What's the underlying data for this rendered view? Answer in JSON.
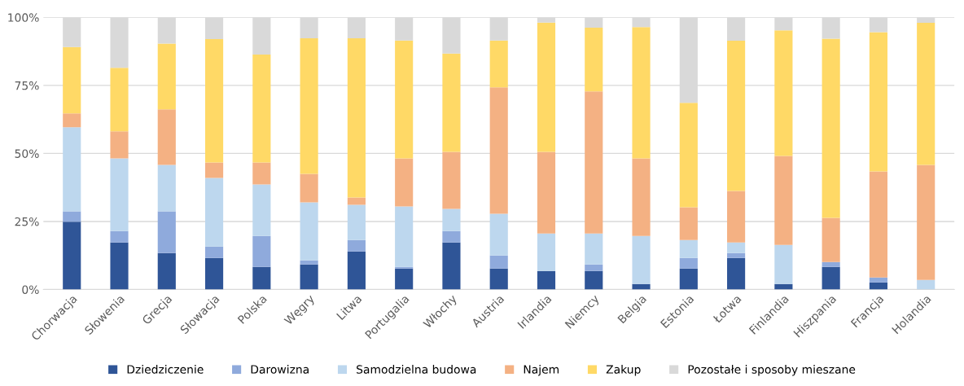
{
  "chart_data": {
    "type": "bar",
    "stacked": true,
    "grid": "y",
    "legend": "bottom",
    "categories": [
      "Chorwacja",
      "Słowenia",
      "Grecja",
      "Słowacja",
      "Polska",
      "Węgry",
      "Litwa",
      "Portugalia",
      "Włochy",
      "Austria",
      "Irlandia",
      "Niemcy",
      "Belgia",
      "Estonia",
      "Łotwa",
      "Finlandia",
      "Hiszpania",
      "Francja",
      "Holandia"
    ],
    "ylim": [
      0,
      100
    ],
    "yticks": [
      {
        "value": 0,
        "label": "0%"
      },
      {
        "value": 25,
        "label": "25%"
      },
      {
        "value": 50,
        "label": "50%"
      },
      {
        "value": 75,
        "label": "75%"
      },
      {
        "value": 100,
        "label": "100%"
      }
    ],
    "series": [
      {
        "name": "Dziedziczenie",
        "color": "#2f5597",
        "values": [
          24.9,
          17.3,
          13.4,
          11.6,
          8.3,
          9.2,
          14.0,
          7.7,
          17.3,
          7.7,
          6.8,
          6.8,
          2.0,
          7.7,
          11.6,
          2.0,
          8.3,
          2.6,
          0
        ]
      },
      {
        "name": "Darowizna",
        "color": "#8faadc",
        "values": [
          3.8,
          4.2,
          15.3,
          4.2,
          11.4,
          1.5,
          4.2,
          0.6,
          4.2,
          4.8,
          0,
          2.4,
          0,
          3.9,
          1.8,
          0,
          1.8,
          1.8,
          0
        ]
      },
      {
        "name": "Samodzielna budowa",
        "color": "#bdd7ee",
        "values": [
          30.9,
          26.7,
          17.1,
          25.2,
          18.9,
          21.3,
          12.9,
          22.2,
          8.1,
          15.3,
          13.8,
          11.4,
          17.7,
          6.6,
          3.9,
          14.4,
          0,
          0,
          3.5
        ]
      },
      {
        "name": "Najem",
        "color": "#f4b183",
        "values": [
          5.1,
          9.9,
          20.4,
          5.7,
          8.1,
          10.5,
          2.7,
          17.7,
          21.0,
          46.5,
          30.0,
          52.2,
          28.5,
          12.0,
          18.9,
          32.7,
          16.2,
          39.0,
          42.3
        ]
      },
      {
        "name": "Zakup",
        "color": "#ffd966",
        "values": [
          24.4,
          23.4,
          24.2,
          45.3,
          39.6,
          49.8,
          58.5,
          43.3,
          36.1,
          17.2,
          47.5,
          23.4,
          48.2,
          38.4,
          55.2,
          46.1,
          65.9,
          51.2,
          52.2
        ]
      },
      {
        "name": "Pozostałe i sposoby mieszane",
        "color": "#d9d9d9",
        "values": [
          10.9,
          18.5,
          9.6,
          8.0,
          13.7,
          7.7,
          7.7,
          8.5,
          13.3,
          8.5,
          1.9,
          3.8,
          3.6,
          31.4,
          8.6,
          4.8,
          7.8,
          5.4,
          2.0
        ]
      }
    ]
  }
}
